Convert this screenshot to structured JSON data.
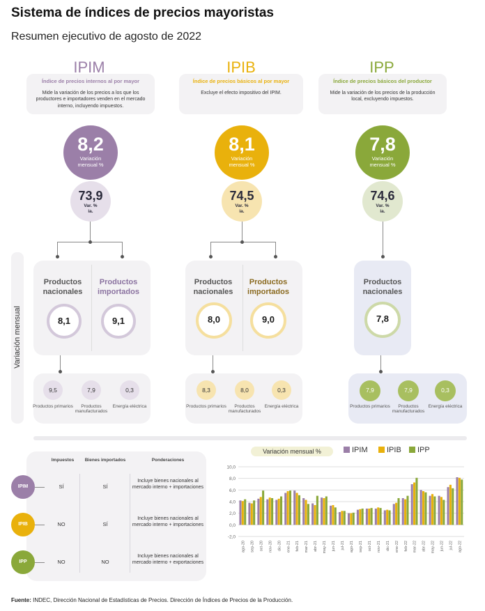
{
  "header": {
    "title": "Sistema de índices de precios mayoristas",
    "subtitle": "Resumen ejecutivo de agosto de 2022"
  },
  "colors": {
    "ipim": "#9b7fa8",
    "ipib": "#e9b10c",
    "ipp": "#8aa83a",
    "ipim_light": "#e6dfea",
    "ipib_light": "#f7e4b0",
    "ipp_light": "#e1e8cf",
    "panel": "#f3f2f4",
    "ipp_panel": "#e8eaf4"
  },
  "indices": [
    {
      "title": "IPIM",
      "name": "Índice de precios internos al por mayor",
      "description": "Mide la variación de los precios a los que los productores e importadores venden en el mercado interno, incluyendo impuestos.",
      "monthly_value": "8,2",
      "monthly_label": "Variación mensual %",
      "yoy_value": "73,9",
      "yoy_label": "Var. % ia.",
      "products": [
        {
          "label": "Productos nacionales",
          "value": "8,1"
        },
        {
          "label": "Productos importados",
          "value": "9,1"
        }
      ],
      "subitems": [
        {
          "label": "Productos primarios",
          "value": "9,5"
        },
        {
          "label": "Productos manufacturados",
          "value": "7,9"
        },
        {
          "label": "Energía eléctrica",
          "value": "0,3"
        }
      ]
    },
    {
      "title": "IPIB",
      "name": "Índice de precios básicos al por mayor",
      "description": "Excluye el efecto impositivo del IPIM.",
      "monthly_value": "8,1",
      "monthly_label": "Variación mensual %",
      "yoy_value": "74,5",
      "yoy_label": "Var. % ia.",
      "products": [
        {
          "label": "Productos nacionales",
          "value": "8,0"
        },
        {
          "label": "Productos importados",
          "value": "9,0"
        }
      ],
      "subitems": [
        {
          "label": "Productos primarios",
          "value": "8,3"
        },
        {
          "label": "Productos manufacturados",
          "value": "8,0"
        },
        {
          "label": "Energía eléctrica",
          "value": "0,3"
        }
      ]
    },
    {
      "title": "IPP",
      "name": "Índice de precios básicos del productor",
      "description": "Mide la variación de los precios de la producción local, excluyendo impuestos.",
      "monthly_value": "7,8",
      "monthly_label": "Variación mensual %",
      "yoy_value": "74,6",
      "yoy_label": "Var. % ia.",
      "products": [
        {
          "label": "Productos nacionales",
          "value": "7,8"
        }
      ],
      "subitems": [
        {
          "label": "Productos primarios",
          "value": "7,9"
        },
        {
          "label": "Productos manufacturados",
          "value": "7,9"
        },
        {
          "label": "Energía eléctrica",
          "value": "0,3"
        }
      ]
    }
  ],
  "side_label": "Variación mensual",
  "table": {
    "headers": [
      "Impuestos",
      "Bienes importados",
      "Ponderaciones"
    ],
    "rows": [
      {
        "badge": "IPIM",
        "impuestos": "SÍ",
        "importados": "SÍ",
        "ponderaciones": "Incluye bienes nacionales al mercado interno + importaciones"
      },
      {
        "badge": "IPIB",
        "impuestos": "NO",
        "importados": "SÍ",
        "ponderaciones": "Incluye bienes nacionales al mercado interno + importaciones"
      },
      {
        "badge": "IPP",
        "impuestos": "NO",
        "importados": "NO",
        "ponderaciones": "Incluye bienes nacionales al mercado interno + exportaciones"
      }
    ]
  },
  "chart_data": {
    "type": "bar",
    "title": "Variación mensual %",
    "categories": [
      "ago-20",
      "sep-20",
      "oct-20",
      "nov-20",
      "dic-20",
      "ene-21",
      "feb-21",
      "mar-21",
      "abr-21",
      "may-21",
      "jun-21",
      "jul-21",
      "ago-21",
      "sep-21",
      "oct-21",
      "nov-21",
      "dic-21",
      "ene-22",
      "feb-22",
      "mar-22",
      "abr-22",
      "may-22",
      "jun-22",
      "jul-22",
      "ago-22"
    ],
    "series": [
      {
        "name": "IPIM",
        "values": [
          4.2,
          3.8,
          4.5,
          4.4,
          4.3,
          5.5,
          5.9,
          4.6,
          3.7,
          4.7,
          3.3,
          2.2,
          2.0,
          2.6,
          2.8,
          2.8,
          2.5,
          3.6,
          4.6,
          7.0,
          6.0,
          5.0,
          5.0,
          6.5,
          8.2
        ]
      },
      {
        "name": "IPIB",
        "values": [
          4.1,
          3.7,
          4.8,
          4.7,
          4.5,
          5.8,
          5.5,
          4.3,
          3.4,
          4.6,
          3.4,
          2.4,
          2.0,
          2.7,
          2.8,
          3.0,
          2.6,
          3.8,
          4.4,
          7.3,
          5.8,
          5.3,
          4.8,
          6.9,
          8.1
        ]
      },
      {
        "name": "IPP",
        "values": [
          4.4,
          4.2,
          5.9,
          4.6,
          4.9,
          5.9,
          5.1,
          3.6,
          5.0,
          4.9,
          3.0,
          2.4,
          2.1,
          2.8,
          2.9,
          2.9,
          2.5,
          4.6,
          5.0,
          8.1,
          5.6,
          4.9,
          4.3,
          6.3,
          7.8
        ]
      }
    ],
    "yticks": [
      "10,0",
      "8,0",
      "6,0",
      "4,0",
      "2,0",
      "0,0",
      "-2,0"
    ],
    "ylim": [
      -2,
      10
    ],
    "legend": "top"
  },
  "footer": {
    "label": "Fuente:",
    "text": " INDEC, Dirección Nacional de Estadísticas de Precios. Dirección de Índices de Precios de la Producción."
  }
}
